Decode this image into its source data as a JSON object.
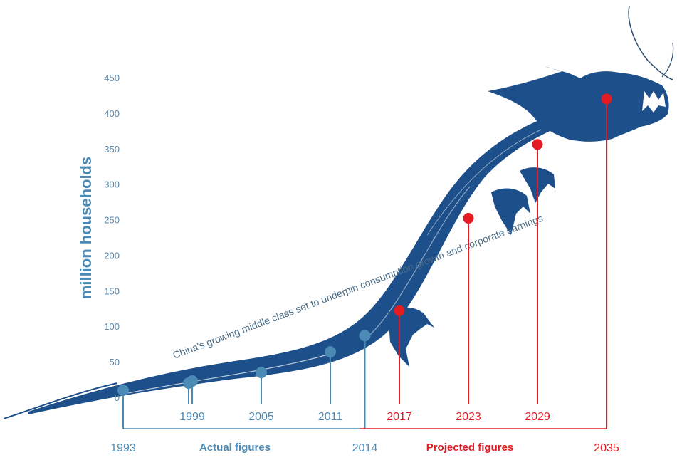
{
  "chart_data": {
    "type": "line",
    "ylabel": "million households",
    "ylim": [
      0,
      450
    ],
    "yticks": [
      0,
      50,
      100,
      150,
      200,
      250,
      300,
      350,
      400,
      450
    ],
    "annotation": "China's growing middle class set to underpin consumption growth and corporate earnings",
    "group_labels": {
      "actual": "Actual figures",
      "projected": "Projected figures"
    },
    "colors": {
      "actual": "#4a8ab5",
      "projected": "#e31b23",
      "dragon": "#1d4f8a"
    },
    "series": [
      {
        "points": [
          {
            "year": "1993",
            "value": 10,
            "kind": "actual"
          },
          {
            "year": "1997",
            "value": 20,
            "kind": "actual"
          },
          {
            "year": "1999",
            "value": 23,
            "kind": "actual"
          },
          {
            "year": "2005",
            "value": 35,
            "kind": "actual"
          },
          {
            "year": "2011",
            "value": 64,
            "kind": "actual"
          },
          {
            "year": "2014",
            "value": 87,
            "kind": "actual"
          },
          {
            "year": "2017",
            "value": 122,
            "kind": "projected"
          },
          {
            "year": "2023",
            "value": 252,
            "kind": "projected"
          },
          {
            "year": "2029",
            "value": 356,
            "kind": "projected"
          },
          {
            "year": "2035",
            "value": 420,
            "kind": "projected"
          }
        ]
      }
    ],
    "year_labels_row1": [
      "1999",
      "2005",
      "2011",
      "2017",
      "2023",
      "2029"
    ],
    "year_labels_row2": [
      "1993",
      "2014",
      "2035"
    ]
  }
}
